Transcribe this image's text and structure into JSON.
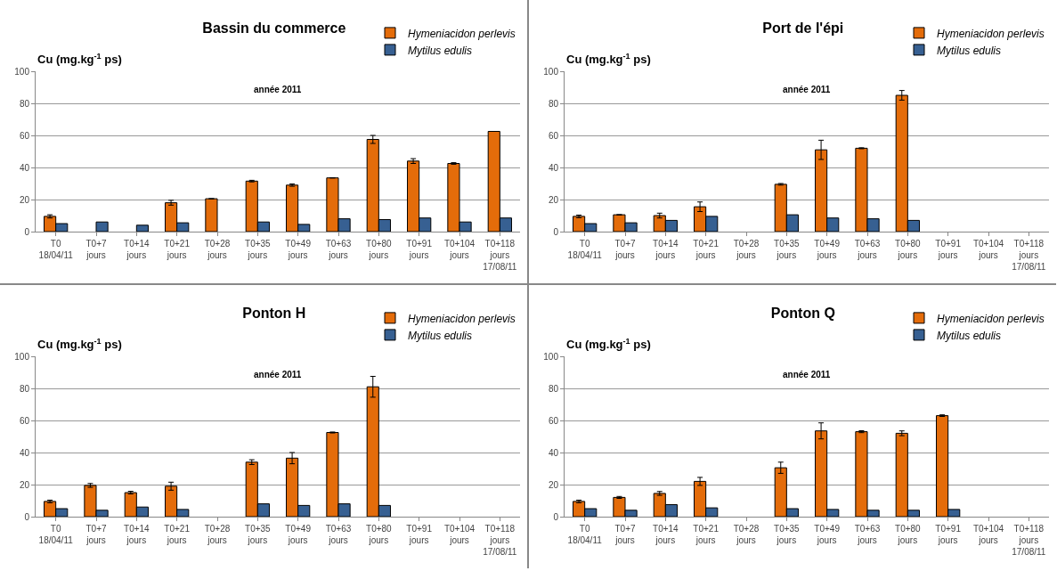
{
  "chart_data": [
    {
      "type": "bar",
      "title": "Bassin du commerce",
      "ylabel": "Cu (mg.kg$^{-1}$ ps)",
      "annotations": [
        "année 2011"
      ],
      "categories": [
        "T0\n18/04/11",
        "T0+7\njours",
        "T0+14\njours",
        "T0+21\njours",
        "T0+28\njours",
        "T0+35\njours",
        "T0+49\njours",
        "T0+63\njours",
        "T0+80\njours",
        "T0+91\njours",
        "T0+104\njours",
        "T0+118\njours\n17/08/11"
      ],
      "series": [
        {
          "name": "Hymeniacidon perlevis",
          "color": "#e46c0a",
          "values": [
            9.5,
            null,
            null,
            18,
            20.5,
            31.5,
            29,
            33.5,
            57.5,
            44,
            42.5,
            62.5
          ],
          "errors": [
            1,
            null,
            null,
            1.5,
            null,
            0.5,
            0.7,
            null,
            2.5,
            1.5,
            0.5,
            null
          ]
        },
        {
          "name": "Mytilus edulis",
          "color": "#376092",
          "values": [
            5,
            6,
            4,
            5.5,
            null,
            6,
            4.5,
            8,
            7.5,
            8.5,
            6,
            8.5
          ]
        }
      ],
      "ylim": [
        0,
        100
      ],
      "yticks": [
        0,
        20,
        40,
        60,
        80,
        100
      ],
      "grid": "y",
      "legend": "top right"
    },
    {
      "type": "bar",
      "title": "Port de l'épi",
      "ylabel": "Cu (mg.kg$^{-1}$ ps)",
      "annotations": [
        "année 2011"
      ],
      "categories": [
        "T0\n18/04/11",
        "T0+7\njours",
        "T0+14\njours",
        "T0+21\njours",
        "T0+28\njours",
        "T0+35\njours",
        "T0+49\njours",
        "T0+63\njours",
        "T0+80\njours",
        "T0+91\njours",
        "T0+104\njours",
        "T0+118\njours\n17/08/11"
      ],
      "series": [
        {
          "name": "Hymeniacidon perlevis",
          "color": "#e46c0a",
          "values": [
            9.5,
            10.5,
            10,
            15.5,
            null,
            29.5,
            51,
            52,
            85,
            null,
            null,
            null
          ],
          "errors": [
            0.8,
            null,
            1.5,
            3,
            null,
            0.5,
            6,
            0.3,
            3,
            null,
            null,
            null
          ]
        },
        {
          "name": "Mytilus edulis",
          "color": "#376092",
          "values": [
            5,
            5.5,
            7,
            9.5,
            null,
            10.5,
            8.5,
            8,
            7,
            null,
            null,
            null
          ]
        }
      ],
      "ylim": [
        0,
        100
      ],
      "yticks": [
        0,
        20,
        40,
        60,
        80,
        100
      ],
      "grid": "y",
      "legend": "top right"
    },
    {
      "type": "bar",
      "title": "Ponton H",
      "ylabel": "Cu (mg.kg$^{-1}$ ps)",
      "annotations": [
        "année 2011"
      ],
      "categories": [
        "T0\n18/04/11",
        "T0+7\njours",
        "T0+14\njours",
        "T0+21\njours",
        "T0+28\njours",
        "T0+35\njours",
        "T0+49\njours",
        "T0+63\njours",
        "T0+80\njours",
        "T0+91\njours",
        "T0+104\njours",
        "T0+118\njours\n17/08/11"
      ],
      "series": [
        {
          "name": "Hymeniacidon perlevis",
          "color": "#e46c0a",
          "values": [
            9.5,
            19.5,
            15,
            19,
            null,
            34,
            36.5,
            52.5,
            81,
            null,
            null,
            null
          ],
          "errors": [
            0.8,
            1.2,
            0.8,
            2.5,
            null,
            1.5,
            3.5,
            0.3,
            6.5,
            null,
            null,
            null
          ]
        },
        {
          "name": "Mytilus edulis",
          "color": "#376092",
          "values": [
            5,
            4,
            6,
            4.5,
            null,
            8,
            7,
            8,
            7,
            null,
            null,
            null
          ]
        }
      ],
      "ylim": [
        0,
        100
      ],
      "yticks": [
        0,
        20,
        40,
        60,
        80,
        100
      ],
      "grid": "y",
      "legend": "top right"
    },
    {
      "type": "bar",
      "title": "Ponton Q",
      "ylabel": "Cu (mg.kg$^{-1}$ ps)",
      "annotations": [
        "année 2011"
      ],
      "categories": [
        "T0\n18/04/11",
        "T0+7\njours",
        "T0+14\njours",
        "T0+21\njours",
        "T0+28\njours",
        "T0+35\njours",
        "T0+49\njours",
        "T0+63\njours",
        "T0+80\njours",
        "T0+91\njours",
        "T0+104\njours",
        "T0+118\njours\n17/08/11"
      ],
      "series": [
        {
          "name": "Hymeniacidon perlevis",
          "color": "#e46c0a",
          "values": [
            9.5,
            12,
            14.5,
            22,
            null,
            30.5,
            53.5,
            53,
            52,
            63,
            null,
            null
          ],
          "errors": [
            0.8,
            0.6,
            1.2,
            2.5,
            null,
            3.5,
            5,
            0.6,
            1.5,
            0.5,
            null,
            null
          ]
        },
        {
          "name": "Mytilus edulis",
          "color": "#376092",
          "values": [
            5,
            4,
            7.5,
            5.5,
            null,
            5,
            4.5,
            4,
            4,
            4.5,
            null,
            null
          ]
        }
      ],
      "ylim": [
        0,
        100
      ],
      "yticks": [
        0,
        20,
        40,
        60,
        80,
        100
      ],
      "grid": "y",
      "legend": "top right"
    }
  ]
}
